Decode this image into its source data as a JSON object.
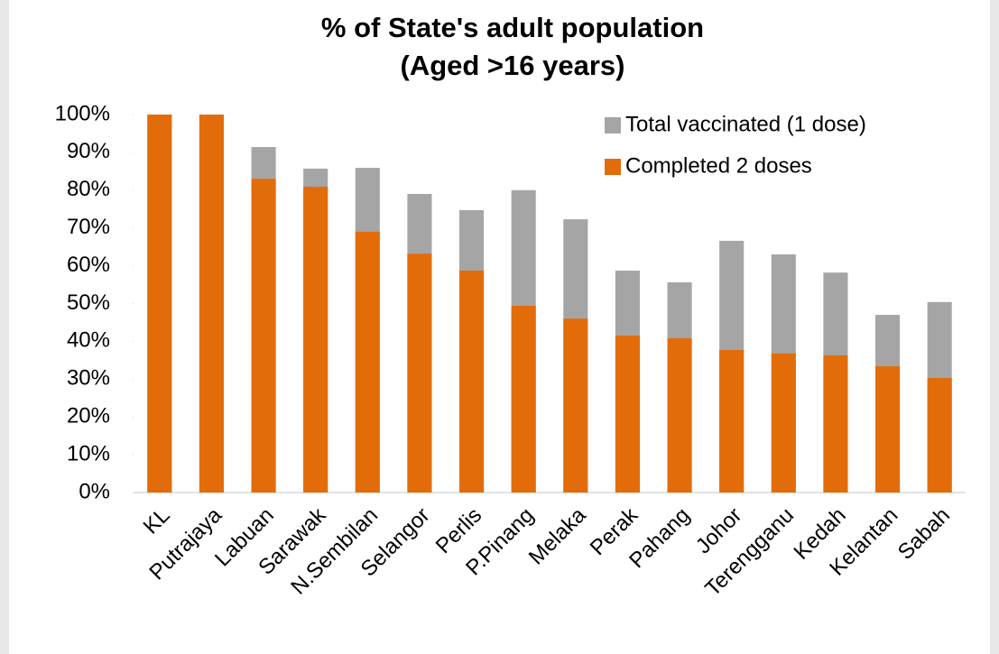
{
  "chart_data": {
    "type": "bar",
    "barmode": "overlay",
    "title": [
      "% of State's adult population",
      "(Aged >16 years)"
    ],
    "categories": [
      "KL",
      "Putrajaya",
      "Labuan",
      "Sarawak",
      "N.Sembilan",
      "Selangor",
      "Perlis",
      "P.Pinang",
      "Melaka",
      "Perak",
      "Pahang",
      "Johor",
      "Terengganu",
      "Kedah",
      "Kelantan",
      "Sabah"
    ],
    "series": [
      {
        "name": "Total vaccinated (1 dose)",
        "color": "#a5a5a5",
        "values": [
          100,
          100,
          91.4,
          85.7,
          85.9,
          79,
          74.7,
          80,
          72.3,
          58.7,
          55.6,
          66.6,
          63,
          58.2,
          47,
          50.4
        ]
      },
      {
        "name": "Completed 2 doses",
        "color": "#e36c0a",
        "values": [
          100,
          100,
          83,
          80.9,
          69,
          63.2,
          58.7,
          49.4,
          46,
          41.5,
          40.8,
          37.7,
          36.8,
          36.3,
          33.4,
          30.3
        ]
      }
    ],
    "ylim": [
      0,
      100
    ],
    "yticks": [
      {
        "value": 0,
        "label": "0%"
      },
      {
        "value": 10,
        "label": "10%"
      },
      {
        "value": 20,
        "label": "20%"
      },
      {
        "value": 30,
        "label": "30%"
      },
      {
        "value": 40,
        "label": "40%"
      },
      {
        "value": 50,
        "label": "50%"
      },
      {
        "value": 60,
        "label": "60%"
      },
      {
        "value": 70,
        "label": "70%"
      },
      {
        "value": 80,
        "label": "80%"
      },
      {
        "value": 90,
        "label": "90%"
      },
      {
        "value": 100,
        "label": "100%"
      }
    ],
    "grid": false,
    "legend": "upper right"
  }
}
